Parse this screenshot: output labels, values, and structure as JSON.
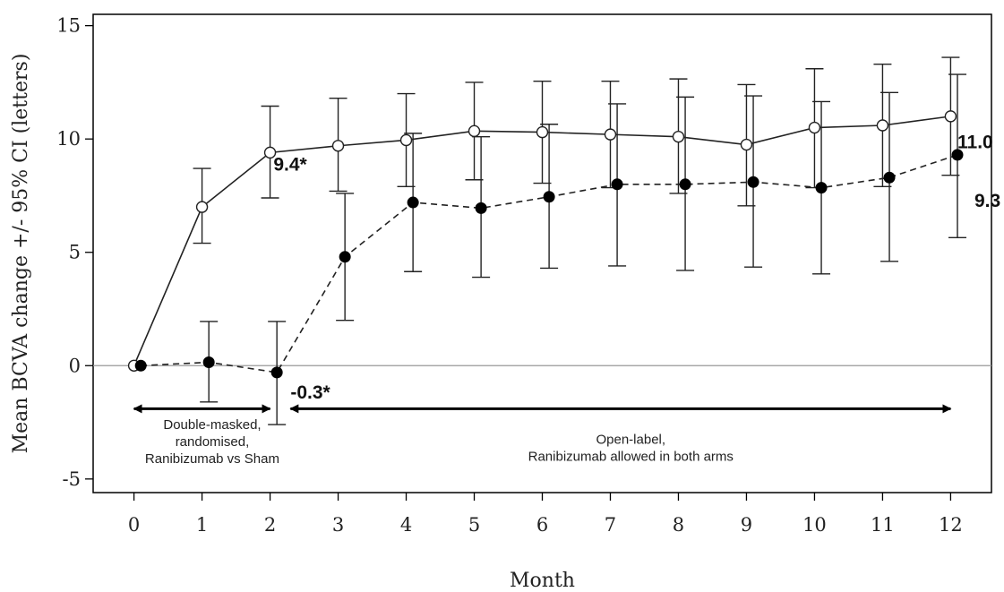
{
  "chart_data": {
    "type": "line",
    "title": "",
    "xlabel": "Month",
    "ylabel": "Mean BCVA change +/- 95% CI (letters)",
    "x": [
      0,
      1,
      2,
      3,
      4,
      5,
      6,
      7,
      8,
      9,
      10,
      11,
      12
    ],
    "xlim": [
      -0.6,
      12.6
    ],
    "ylim": [
      -5.6,
      15.5
    ],
    "xticks": [
      0,
      1,
      2,
      3,
      4,
      5,
      6,
      7,
      8,
      9,
      10,
      11,
      12
    ],
    "yticks": [
      -5,
      0,
      5,
      10,
      15
    ],
    "grid": false,
    "reference_line_y": 0,
    "series": [
      {
        "name": "",
        "style": "solid",
        "marker": "open-circle",
        "x_offset": 0,
        "values": [
          0,
          7.0,
          9.4,
          9.7,
          9.95,
          10.35,
          10.3,
          10.2,
          10.1,
          9.75,
          10.5,
          10.6,
          11.0
        ],
        "ci_low": [
          null,
          5.4,
          7.4,
          7.7,
          7.9,
          8.2,
          8.05,
          7.85,
          7.6,
          7.05,
          7.85,
          7.9,
          8.4
        ],
        "ci_high": [
          null,
          8.7,
          11.45,
          11.8,
          12.0,
          12.5,
          12.55,
          12.55,
          12.65,
          12.4,
          13.1,
          13.3,
          13.6
        ]
      },
      {
        "name": "",
        "style": "dashed",
        "marker": "filled-circle",
        "x_offset": 0.1,
        "values": [
          0,
          0.15,
          -0.3,
          4.8,
          7.2,
          6.95,
          7.45,
          8.0,
          8.0,
          8.1,
          7.85,
          8.3,
          9.3
        ],
        "ci_low": [
          null,
          -1.6,
          -2.6,
          2.0,
          4.15,
          3.9,
          4.3,
          4.4,
          4.2,
          4.35,
          4.05,
          4.6,
          5.65
        ],
        "ci_high": [
          null,
          1.95,
          1.95,
          7.6,
          10.25,
          10.1,
          10.65,
          11.55,
          11.85,
          11.9,
          11.65,
          12.05,
          12.85
        ]
      }
    ],
    "annotations": [
      {
        "text": "9.4*",
        "x": 2.05,
        "y": 8.6
      },
      {
        "text": "11.0",
        "x": 12.1,
        "y": 9.6
      },
      {
        "text": "9.3",
        "x": 12.35,
        "y": 7.0
      },
      {
        "text": "-0.3*",
        "x": 2.3,
        "y": -1.45
      }
    ],
    "periods": [
      {
        "lines": [
          "Double-masked,",
          "randomised,",
          "Ranibizumab vs Sham"
        ],
        "x_start": 0,
        "x_end": 2,
        "arrow_y": -1.9,
        "text_x": 1.15,
        "text_y": -2.8
      },
      {
        "lines": [
          "Open-label,",
          "Ranibizumab allowed in both arms"
        ],
        "x_start": 2.3,
        "x_end": 12,
        "arrow_y": -1.9,
        "text_x": 7.3,
        "text_y": -3.45
      }
    ]
  }
}
